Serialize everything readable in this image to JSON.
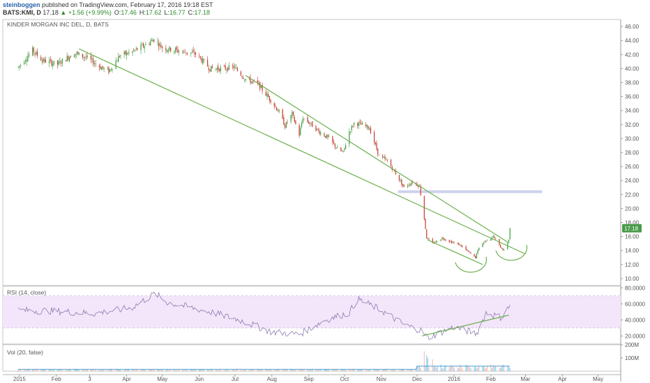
{
  "header": {
    "user": "steinboggen",
    "published": "published on TradingView.com, February 17, 2016 19:18 EST",
    "symbol": "BATS:KMI, D",
    "last": "17.18",
    "change": "+1.56 (+9.99%)",
    "arrow_icon": "up-triangle-icon",
    "o_label": "O:",
    "o_value": "17.46",
    "h_label": "H:",
    "h_value": "17.62",
    "l_label": "L:",
    "l_value": "16.77",
    "c_label": "C:",
    "c_value": "17.18"
  },
  "colors": {
    "up": "#3a9b3a",
    "down": "#c0392b",
    "trendline": "#6ab04c",
    "rsi_line": "#8a7bb0",
    "rsi_band": "#f3e6fa",
    "support_zone": "#c9cdea",
    "volume": "#7ec7e8",
    "last_price_tag": "#4a9a4a"
  },
  "chart_data": [
    {
      "type": "candlestick",
      "title": "KINDER MORGAN INC DEL, D, BATS",
      "x_tick_labels": [
        "2015",
        "Feb",
        "3",
        "Apr",
        "May",
        "Jun",
        "Jul",
        "Aug",
        "Sep",
        "Oct",
        "Nov",
        "Dec",
        "2016",
        "Feb",
        "Mar",
        "Apr",
        "May"
      ],
      "y_tick_labels": [
        "46.00",
        "44.00",
        "42.00",
        "40.00",
        "38.00",
        "36.00",
        "34.00",
        "32.00",
        "30.00",
        "28.00",
        "26.00",
        "24.00",
        "22.00",
        "20.00",
        "18.00",
        "16.00",
        "14.00",
        "12.00",
        "10.00"
      ],
      "ylim": [
        9,
        47
      ],
      "last_price_label": "17.18",
      "support_zone": {
        "y_range": [
          22.2,
          22.6
        ],
        "x_range": [
          "2015-11-15",
          "2016-03-15"
        ]
      },
      "trendlines": [
        {
          "from": [
            "2015-02-20",
            42.8
          ],
          "to": [
            "2016-03-01",
            13.5
          ]
        },
        {
          "from": [
            "2015-07-10",
            39.0
          ],
          "to": [
            "2016-02-15",
            15.2
          ]
        },
        {
          "from": [
            "2015-12-10",
            15.5
          ],
          "to": [
            "2016-01-25",
            12.0
          ]
        }
      ],
      "arcs": [
        {
          "center": [
            "2016-01-15",
            12.3
          ]
        },
        {
          "center": [
            "2016-02-18",
            14.0
          ]
        }
      ],
      "price_path": [
        [
          "2014-12-31",
          40.2
        ],
        [
          "2015-01-12",
          42.6
        ],
        [
          "2015-01-20",
          41.2
        ],
        [
          "2015-02-02",
          40.6
        ],
        [
          "2015-02-16",
          42.2
        ],
        [
          "2015-02-26",
          41.6
        ],
        [
          "2015-03-10",
          40.2
        ],
        [
          "2015-03-17",
          39.6
        ],
        [
          "2015-03-26",
          41.8
        ],
        [
          "2015-04-06",
          42.4
        ],
        [
          "2015-04-15",
          43.2
        ],
        [
          "2015-04-24",
          44.2
        ],
        [
          "2015-05-01",
          43.0
        ],
        [
          "2015-05-15",
          42.5
        ],
        [
          "2015-05-29",
          42.1
        ],
        [
          "2015-06-10",
          40.0
        ],
        [
          "2015-06-22",
          40.0
        ],
        [
          "2015-06-30",
          40.2
        ],
        [
          "2015-07-10",
          38.5
        ],
        [
          "2015-07-20",
          37.8
        ],
        [
          "2015-07-31",
          35.5
        ],
        [
          "2015-08-07",
          33.8
        ],
        [
          "2015-08-12",
          31.8
        ],
        [
          "2015-08-18",
          33.5
        ],
        [
          "2015-08-24",
          30.5
        ],
        [
          "2015-08-27",
          33.0
        ],
        [
          "2015-09-03",
          32.0
        ],
        [
          "2015-09-11",
          30.8
        ],
        [
          "2015-09-18",
          30.0
        ],
        [
          "2015-09-25",
          28.5
        ],
        [
          "2015-09-30",
          28.0
        ],
        [
          "2015-10-05",
          31.0
        ],
        [
          "2015-10-09",
          32.2
        ],
        [
          "2015-10-15",
          32.0
        ],
        [
          "2015-10-22",
          31.5
        ],
        [
          "2015-10-30",
          27.5
        ],
        [
          "2015-11-06",
          26.8
        ],
        [
          "2015-11-13",
          25.0
        ],
        [
          "2015-11-20",
          23.0
        ],
        [
          "2015-11-27",
          23.8
        ],
        [
          "2015-12-03",
          23.2
        ],
        [
          "2015-12-07",
          18.5
        ],
        [
          "2015-12-09",
          15.8
        ],
        [
          "2015-12-14",
          15.0
        ],
        [
          "2015-12-22",
          15.8
        ],
        [
          "2015-12-30",
          15.2
        ],
        [
          "2016-01-06",
          14.8
        ],
        [
          "2016-01-13",
          13.8
        ],
        [
          "2016-01-19",
          13.0
        ],
        [
          "2016-01-22",
          14.5
        ],
        [
          "2016-01-28",
          15.5
        ],
        [
          "2016-02-03",
          16.0
        ],
        [
          "2016-02-09",
          14.5
        ],
        [
          "2016-02-12",
          14.0
        ],
        [
          "2016-02-16",
          15.6
        ],
        [
          "2016-02-17",
          17.18
        ]
      ]
    },
    {
      "type": "line",
      "title": "RSI (14, close)",
      "y_tick_labels": [
        "80.0000",
        "60.0000",
        "40.0000",
        "20.0000"
      ],
      "ylim": [
        10,
        82
      ],
      "band": [
        30,
        70
      ],
      "trendline": {
        "from": [
          "2015-12-05",
          20.0
        ],
        "to": [
          "2016-02-16",
          46.0
        ]
      },
      "x": [
        "2014-12-31",
        "2015-02-01",
        "2015-03-05",
        "2015-04-05",
        "2015-04-25",
        "2015-05-05",
        "2015-06-10",
        "2015-07-05",
        "2015-08-01",
        "2015-08-24",
        "2015-09-15",
        "2015-10-05",
        "2015-10-12",
        "2015-11-01",
        "2015-11-20",
        "2015-12-04",
        "2015-12-10",
        "2016-01-01",
        "2016-01-20",
        "2016-01-28",
        "2016-02-10",
        "2016-02-17"
      ],
      "values": [
        52,
        51,
        48,
        55,
        73,
        62,
        50,
        40,
        25,
        22,
        40,
        49,
        66,
        52,
        34,
        27,
        18,
        31,
        23,
        49,
        43,
        58
      ]
    },
    {
      "type": "bar",
      "title": "Vol (20, false)",
      "y_tick_labels": [
        "200M",
        "100M"
      ],
      "ylim": [
        0,
        200
      ],
      "base_level": 12,
      "spike_x": [
        "2015-12-07",
        "2015-12-09",
        "2015-12-10",
        "2015-12-14"
      ],
      "spike_values": [
        150,
        120,
        100,
        90
      ],
      "ma_values_desc": "elevated near 40M Dec 2015 to Feb 2016"
    }
  ]
}
